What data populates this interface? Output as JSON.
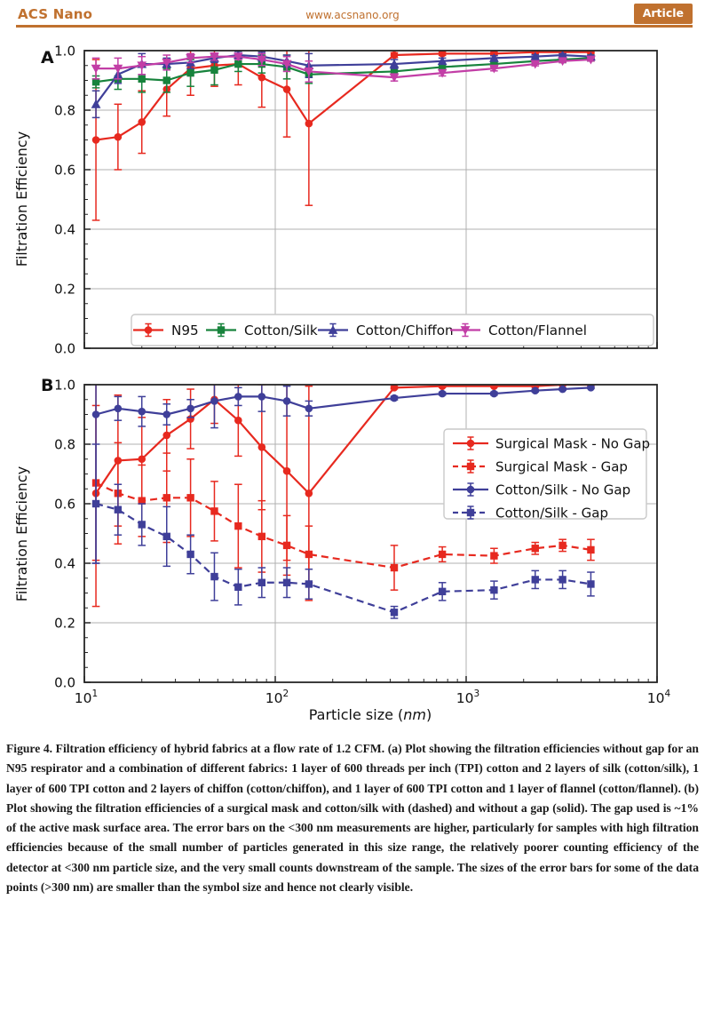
{
  "header": {
    "journal": "ACS Nano",
    "url": "www.acsnano.org",
    "badge": "Article"
  },
  "colors": {
    "accent": "#c0712f",
    "red": "#e7291f",
    "green": "#17833c",
    "navy": "#3f3f99",
    "magenta": "#c23ea6",
    "grid": "#b0b0b0",
    "axis": "#262626"
  },
  "figure": {
    "panel_a": "A",
    "panel_b": "B",
    "y_axis_label": "Filtration Efficiency",
    "x_axis_label_prefix": "Particle size (",
    "x_axis_label_unit": "nm",
    "x_axis_label_suffix": ")",
    "y_tick_labels": [
      "0.0",
      "0.2",
      "0.4",
      "0.6",
      "0.8",
      "1.0"
    ],
    "x_tick_exponents": [
      "1",
      "2",
      "3",
      "4"
    ]
  },
  "chart_data": [
    {
      "type": "line",
      "panel": "A",
      "x_scale": "log",
      "xlim": [
        10,
        10000
      ],
      "ylim": [
        0.0,
        1.0
      ],
      "yticks": [
        0.0,
        0.2,
        0.4,
        0.6,
        0.8,
        1.0
      ],
      "grid": true,
      "legend_position": "lower-center-inside",
      "xlabel": "Particle size (nm)",
      "ylabel": "Filtration Efficiency",
      "x": [
        11.5,
        15,
        20,
        27,
        36,
        48,
        64,
        85,
        115,
        150,
        420,
        750,
        1400,
        2300,
        3200,
        4500
      ],
      "series": [
        {
          "name": "N95",
          "color": "#e7291f",
          "marker": "circle",
          "line": "solid",
          "values": [
            0.7,
            0.71,
            0.76,
            0.87,
            0.94,
            0.95,
            0.955,
            0.91,
            0.87,
            0.755,
            0.985,
            0.99,
            0.99,
            0.995,
            0.995,
            0.995
          ],
          "err": [
            0.27,
            0.11,
            0.105,
            0.09,
            0.09,
            0.07,
            0.07,
            0.1,
            0.16,
            0.275,
            0.008,
            0.006,
            0.005,
            0.004,
            0.004,
            0.004
          ]
        },
        {
          "name": "Cotton/Silk",
          "color": "#17833c",
          "marker": "square",
          "line": "solid",
          "values": [
            0.895,
            0.905,
            0.905,
            0.9,
            0.925,
            0.935,
            0.955,
            0.955,
            0.945,
            0.92,
            0.93,
            0.945,
            0.955,
            0.965,
            0.97,
            0.975
          ],
          "err": [
            0.02,
            0.035,
            0.045,
            0.04,
            0.045,
            0.05,
            0.025,
            0.03,
            0.04,
            0.03,
            0.01,
            0.008,
            0.006,
            0.005,
            0.005,
            0.004
          ]
        },
        {
          "name": "Cotton/Chiffon",
          "color": "#3f3f99",
          "marker": "triangle",
          "line": "solid",
          "values": [
            0.82,
            0.92,
            0.955,
            0.955,
            0.96,
            0.975,
            0.985,
            0.98,
            0.965,
            0.95,
            0.955,
            0.965,
            0.975,
            0.98,
            0.985,
            0.98
          ],
          "err": [
            0.045,
            0.03,
            0.035,
            0.02,
            0.02,
            0.015,
            0.012,
            0.015,
            0.02,
            0.04,
            0.015,
            0.01,
            0.008,
            0.006,
            0.005,
            0.005
          ]
        },
        {
          "name": "Cotton/Flannel",
          "color": "#c23ea6",
          "marker": "triangle-down",
          "line": "solid",
          "values": [
            0.94,
            0.94,
            0.95,
            0.96,
            0.975,
            0.98,
            0.98,
            0.97,
            0.955,
            0.93,
            0.91,
            0.925,
            0.94,
            0.955,
            0.965,
            0.97
          ],
          "err": [
            0.035,
            0.035,
            0.03,
            0.025,
            0.015,
            0.012,
            0.01,
            0.02,
            0.025,
            0.035,
            0.012,
            0.01,
            0.008,
            0.006,
            0.005,
            0.005
          ]
        }
      ]
    },
    {
      "type": "line",
      "panel": "B",
      "x_scale": "log",
      "xlim": [
        10,
        10000
      ],
      "ylim": [
        0.0,
        1.0
      ],
      "yticks": [
        0.0,
        0.2,
        0.4,
        0.6,
        0.8,
        1.0
      ],
      "grid": true,
      "legend_position": "upper-right-inside",
      "xlabel": "Particle size (nm)",
      "ylabel": "Filtration Efficiency",
      "x": [
        11.5,
        15,
        20,
        27,
        36,
        48,
        64,
        85,
        115,
        150,
        420,
        750,
        1400,
        2300,
        3200,
        4500
      ],
      "series": [
        {
          "name": "Surgical Mask - No Gap",
          "color": "#e7291f",
          "marker": "circle",
          "line": "solid",
          "values": [
            0.635,
            0.745,
            0.75,
            0.83,
            0.885,
            0.95,
            0.88,
            0.79,
            0.71,
            0.635,
            0.99,
            0.995,
            0.995,
            0.995,
            1.0,
            1.0
          ],
          "err": [
            0.38,
            0.22,
            0.14,
            0.12,
            0.1,
            0.08,
            0.12,
            0.21,
            0.3,
            0.36,
            0.004,
            0.004,
            0.003,
            0.003,
            0.002,
            0.002
          ]
        },
        {
          "name": "Surgical Mask - Gap",
          "color": "#e7291f",
          "marker": "square",
          "line": "dashed",
          "values": [
            0.67,
            0.635,
            0.61,
            0.62,
            0.62,
            0.575,
            0.525,
            0.49,
            0.46,
            0.43,
            0.385,
            0.43,
            0.425,
            0.45,
            0.46,
            0.445
          ],
          "err": [
            0.26,
            0.17,
            0.12,
            0.15,
            0.13,
            0.1,
            0.14,
            0.12,
            0.1,
            0.095,
            0.075,
            0.025,
            0.025,
            0.02,
            0.02,
            0.035
          ]
        },
        {
          "name": "Cotton/Silk - No Gap",
          "color": "#3f3f99",
          "marker": "circle",
          "line": "solid",
          "values": [
            0.9,
            0.92,
            0.91,
            0.9,
            0.92,
            0.945,
            0.96,
            0.96,
            0.945,
            0.92,
            0.955,
            0.97,
            0.97,
            0.98,
            0.985,
            0.99
          ],
          "err": [
            0.5,
            0.04,
            0.05,
            0.035,
            0.03,
            0.09,
            0.03,
            0.05,
            0.05,
            0.025,
            0.006,
            0.005,
            0.005,
            0.004,
            0.004,
            0.003
          ]
        },
        {
          "name": "Cotton/Silk - Gap",
          "color": "#3f3f99",
          "marker": "square",
          "line": "dashed",
          "values": [
            0.6,
            0.58,
            0.53,
            0.49,
            0.43,
            0.355,
            0.32,
            0.335,
            0.335,
            0.33,
            0.235,
            0.305,
            0.31,
            0.345,
            0.345,
            0.33
          ],
          "err": [
            0.2,
            0.085,
            0.07,
            0.1,
            0.065,
            0.08,
            0.06,
            0.05,
            0.05,
            0.05,
            0.02,
            0.03,
            0.03,
            0.03,
            0.03,
            0.04
          ]
        }
      ]
    }
  ],
  "caption": {
    "text": "Figure 4. Filtration efficiency of hybrid fabrics at a flow rate of 1.2 CFM. (a) Plot showing the filtration efficiencies without gap for an N95 respirator and a combination of different fabrics: 1 layer of 600 threads per inch (TPI) cotton and 2 layers of silk (cotton/silk), 1 layer of 600 TPI cotton and 2 layers of chiffon (cotton/chiffon), and 1 layer of 600 TPI cotton and 1 layer of flannel (cotton/flannel). (b) Plot showing the filtration efficiencies of a surgical mask and cotton/silk with (dashed) and without a gap (solid). The gap used is ~1% of the active mask surface area. The error bars on the <300 nm measurements are higher, particularly for samples with high filtration efficiencies because of the small number of particles generated in this size range, the relatively poorer counting efficiency of the detector at <300 nm particle size, and the very small counts downstream of the sample. The sizes of the error bars for some of the data points (>300 nm) are smaller than the symbol size and hence not clearly visible."
  }
}
